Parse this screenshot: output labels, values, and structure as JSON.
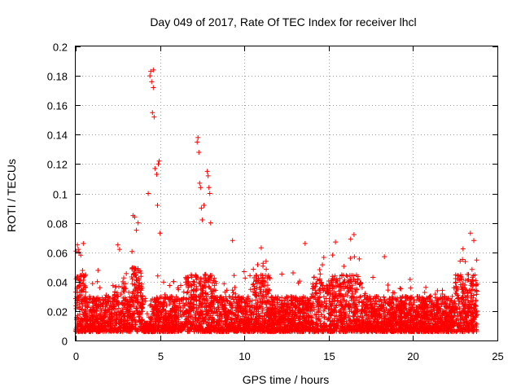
{
  "chart_data": {
    "type": "scatter",
    "title": "Day 049 of 2017, Rate Of TEC Index for receiver lhcl",
    "xlabel": "GPS time / hours",
    "ylabel": "ROTI / TECUs",
    "xlim": [
      0,
      25
    ],
    "ylim": [
      0,
      0.2
    ],
    "x_ticks": [
      0,
      5,
      10,
      15,
      20,
      25
    ],
    "x_tick_labels": [
      "0",
      "5",
      "10",
      "15",
      "20",
      "25"
    ],
    "y_ticks": [
      0,
      0.02,
      0.04,
      0.06,
      0.08,
      0.1,
      0.12,
      0.14,
      0.16,
      0.18,
      0.2
    ],
    "y_tick_labels": [
      "0",
      "0.02",
      "0.04",
      "0.06",
      "0.08",
      "0.1",
      "0.12",
      "0.14",
      "0.16",
      "0.18",
      "0.2"
    ],
    "grid": true,
    "marker": "+",
    "color": "#ff0000",
    "series": [
      {
        "name": "ROTI",
        "description": "Dense band of ROTI samples between ~0.005 and ~0.04 TECU/min from 0 to ~23.8 h; selected peak samples listed below.",
        "x": [
          0.1,
          0.15,
          0.2,
          0.3,
          0.45,
          2.5,
          2.6,
          3.4,
          3.5,
          3.6,
          3.7,
          4.3,
          4.4,
          4.45,
          4.5,
          4.55,
          4.6,
          4.6,
          4.65,
          4.7,
          4.8,
          4.85,
          4.9,
          4.95,
          5.0,
          7.2,
          7.25,
          7.3,
          7.35,
          7.4,
          7.45,
          7.5,
          7.6,
          7.8,
          7.85,
          7.9,
          7.95,
          8.0,
          9.3,
          11.0,
          13.6,
          15.4,
          16.3,
          16.5,
          18.3,
          23.4,
          23.6
        ],
        "y": [
          0.065,
          0.062,
          0.06,
          0.058,
          0.066,
          0.065,
          0.062,
          0.085,
          0.084,
          0.075,
          0.08,
          0.1,
          0.18,
          0.183,
          0.176,
          0.155,
          0.184,
          0.172,
          0.152,
          0.117,
          0.113,
          0.092,
          0.12,
          0.122,
          0.073,
          0.135,
          0.138,
          0.128,
          0.107,
          0.104,
          0.09,
          0.082,
          0.092,
          0.115,
          0.112,
          0.104,
          0.1,
          0.08,
          0.068,
          0.063,
          0.066,
          0.067,
          0.069,
          0.072,
          0.057,
          0.073,
          0.068
        ]
      }
    ]
  }
}
